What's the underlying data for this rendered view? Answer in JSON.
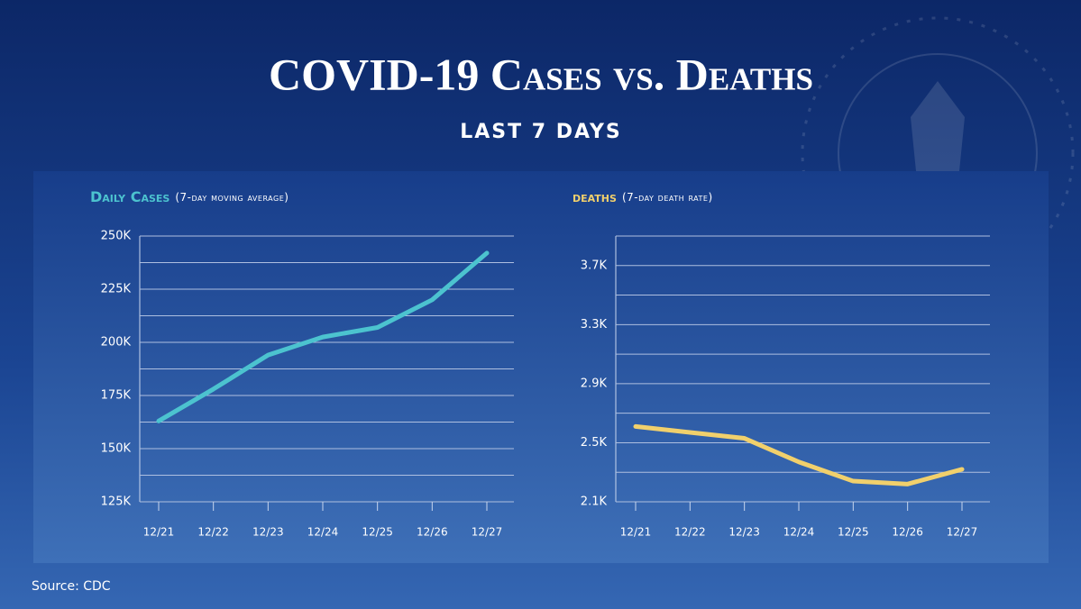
{
  "title": "COVID-19 Cases vs. Deaths",
  "subtitle": "LAST 7 DAYS",
  "source": "Source: CDC",
  "chart_data": [
    {
      "type": "line",
      "title": "Daily Cases",
      "subtitle": "(7-day moving average)",
      "color": "#4cc3cf",
      "categories": [
        "12/21",
        "12/22",
        "12/23",
        "12/24",
        "12/25",
        "12/26",
        "12/27"
      ],
      "values": [
        163000,
        178000,
        194000,
        202500,
        207000,
        220000,
        242000
      ],
      "ylim": [
        125000,
        250000
      ],
      "yticks": [
        {
          "value": 125000,
          "label": "125K"
        },
        {
          "value": 150000,
          "label": "150K"
        },
        {
          "value": 175000,
          "label": "175K"
        },
        {
          "value": 200000,
          "label": "200K"
        },
        {
          "value": 225000,
          "label": "225K"
        },
        {
          "value": 250000,
          "label": "250K"
        }
      ],
      "minor_yticks": [
        137500,
        162500,
        187500,
        212500,
        237500
      ],
      "grid": true
    },
    {
      "type": "line",
      "title": "deaths",
      "subtitle": "(7-day death rate)",
      "color": "#f1d06c",
      "categories": [
        "12/21",
        "12/22",
        "12/23",
        "12/24",
        "12/25",
        "12/26",
        "12/27"
      ],
      "values": [
        2610,
        2570,
        2530,
        2370,
        2240,
        2220,
        2320
      ],
      "ylim": [
        2100,
        3900
      ],
      "yticks": [
        {
          "value": 2100,
          "label": "2.1K"
        },
        {
          "value": 2500,
          "label": "2.5K"
        },
        {
          "value": 2900,
          "label": "2.9K"
        },
        {
          "value": 3300,
          "label": "3.3K"
        },
        {
          "value": 3700,
          "label": "3.7K"
        }
      ],
      "minor_yticks": [
        2300,
        2700,
        3100,
        3500,
        3900
      ],
      "grid": true
    }
  ]
}
